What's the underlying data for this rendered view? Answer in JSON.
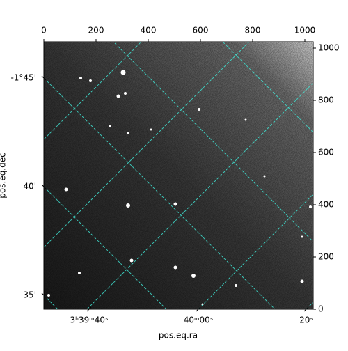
{
  "chart_data": {
    "type": "image",
    "xlabel": "pos.eq.ra",
    "ylabel": "pos.eq.dec",
    "xlim": [
      0,
      1032
    ],
    "ylim": [
      0,
      1024
    ],
    "xticks": [
      0,
      200,
      400,
      600,
      800,
      1000
    ],
    "yticks": [
      0,
      200,
      400,
      600,
      800,
      1000
    ],
    "ra_ticks": [
      "3ʰ39ᵐ40ˢ",
      "40ᵐ00ˢ",
      "20ˢ"
    ],
    "dec_ticks": [
      "-1°45'",
      "40'",
      "35'"
    ],
    "grid": true,
    "grid_color": "#40e0d0"
  }
}
